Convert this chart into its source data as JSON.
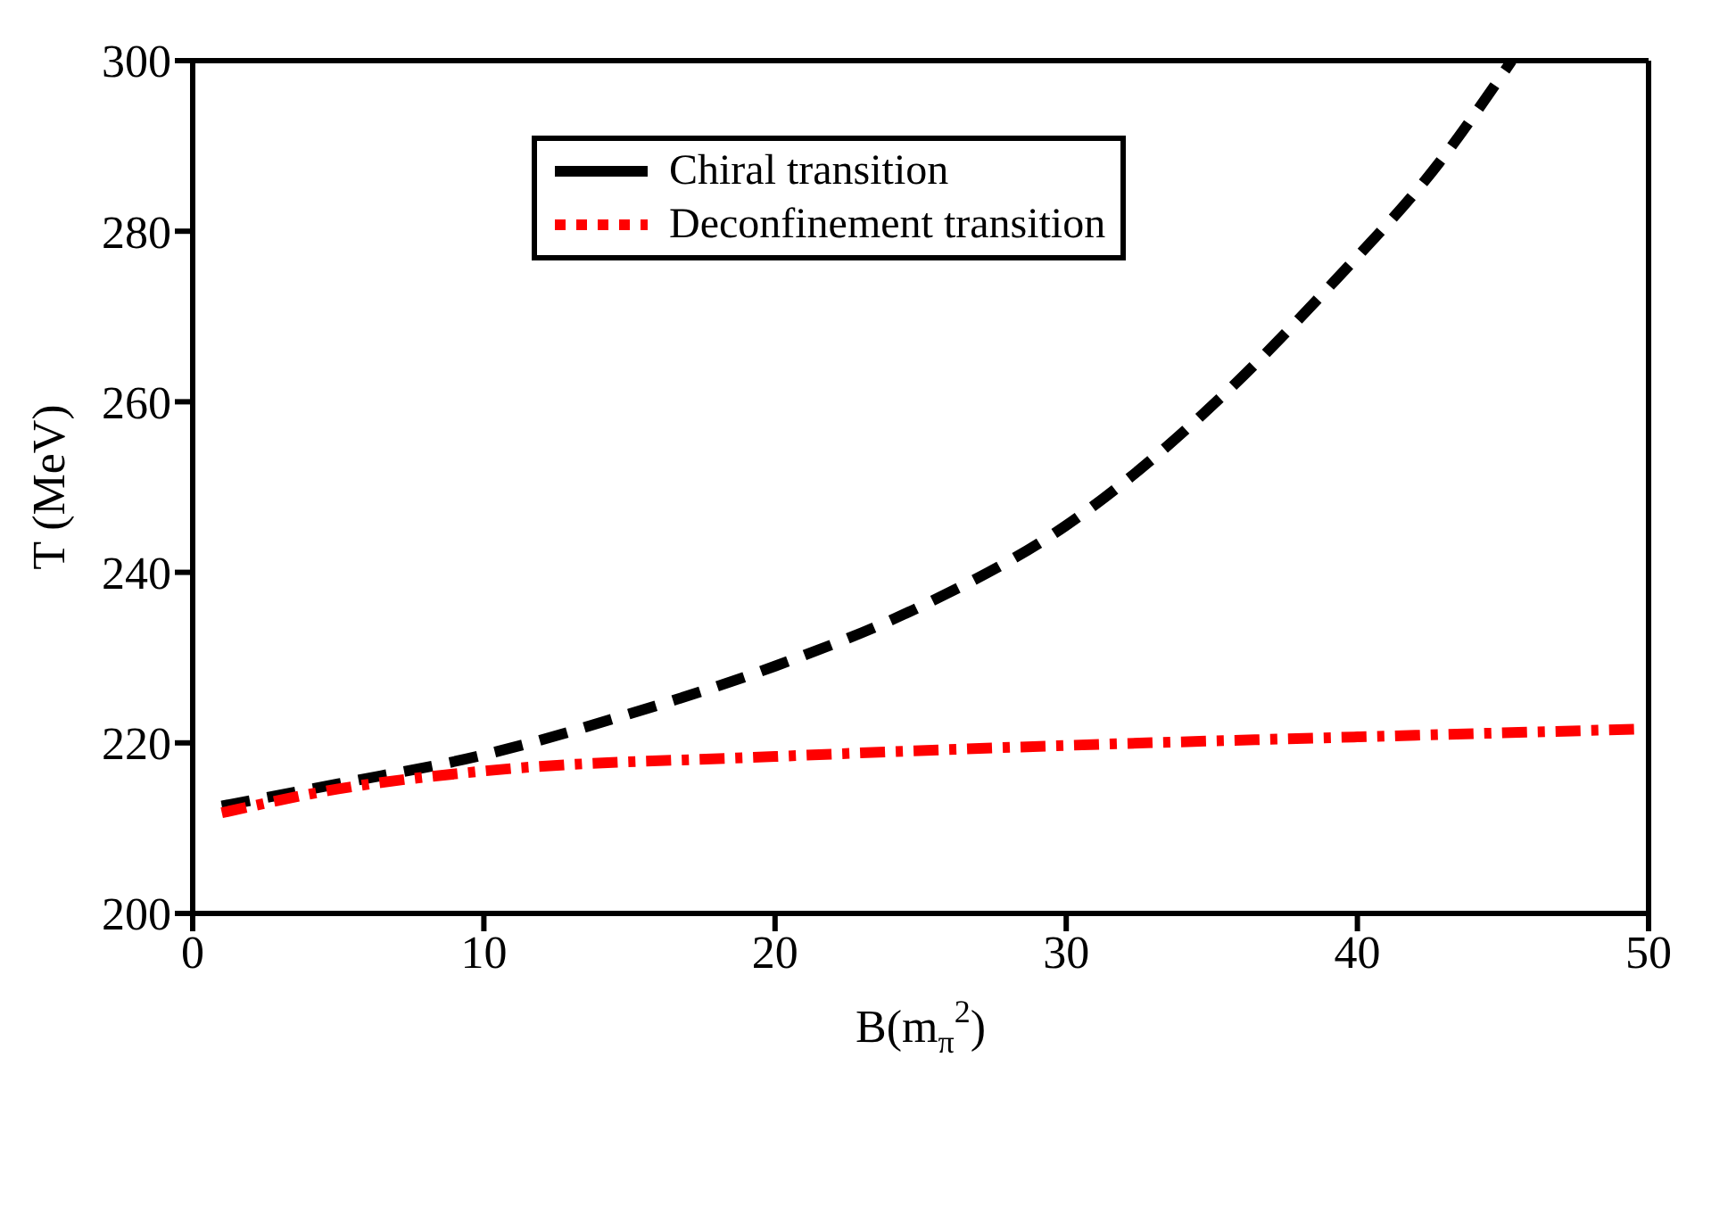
{
  "chart_data": {
    "type": "line",
    "xlabel": "B(m$_{π}$$^{2}$)",
    "ylabel": "T (MeV)",
    "xlim": [
      0,
      50
    ],
    "xticks": [
      0,
      10,
      20,
      30,
      40,
      50
    ],
    "ylim": [
      200,
      300
    ],
    "yticks": [
      200,
      220,
      240,
      260,
      280,
      300
    ],
    "grid": false,
    "legend": "top",
    "marker": "none",
    "series": [
      {
        "name": "Chiral transition",
        "color": "#000000",
        "line_style": "dashed",
        "x": [
          1,
          5,
          10,
          15,
          20,
          25,
          30,
          35.4,
          39.2,
          42.8,
          45.3
        ],
        "values": [
          212.6,
          215.2,
          218.6,
          223.4,
          229,
          236,
          245.5,
          260.8,
          274.1,
          288,
          300
        ]
      },
      {
        "name": "Deconfinement transition",
        "color": "#ff0000",
        "line_style": "dotted",
        "x": [
          1,
          5,
          10,
          20,
          30,
          40,
          49.5
        ],
        "values": [
          211.8,
          214.6,
          216.7,
          218.4,
          219.7,
          220.7,
          221.6
        ]
      }
    ]
  }
}
